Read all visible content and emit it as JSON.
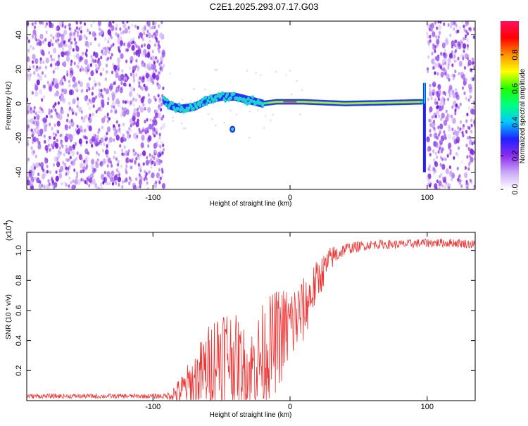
{
  "title": "C2E1.2025.293.07.17.G03",
  "chart_data": [
    {
      "type": "heatmap",
      "xlabel": "Height of straight line (km)",
      "ylabel": "Frequency (Hz)",
      "xlim": [
        -192,
        135
      ],
      "ylim": [
        -50,
        48
      ],
      "xticks": [
        -100,
        0,
        100
      ],
      "yticks": [
        -40,
        -20,
        0,
        20,
        40
      ],
      "colorbar": {
        "label": "Normalized spectral amplitude",
        "range": [
          0,
          1
        ],
        "ticks": [
          "0.0",
          "0.2",
          "0.4",
          "0.6",
          "0.8"
        ],
        "colors": [
          "#ffffff",
          "#c9a9f7",
          "#8c2cf0",
          "#2020ff",
          "#00c8ff",
          "#00ff80",
          "#20ff00",
          "#ffff00",
          "#ff9000",
          "#ff0000",
          "#ff1060"
        ]
      },
      "noise_regions": [
        [
          -192,
          -92
        ],
        [
          100,
          135
        ]
      ],
      "ridge": [
        {
          "x": -92,
          "y": 2
        },
        {
          "x": -88,
          "y": -1
        },
        {
          "x": -80,
          "y": -3
        },
        {
          "x": -70,
          "y": -2
        },
        {
          "x": -60,
          "y": 2
        },
        {
          "x": -50,
          "y": 4
        },
        {
          "x": -40,
          "y": 4
        },
        {
          "x": -30,
          "y": 2
        },
        {
          "x": -20,
          "y": 0
        },
        {
          "x": -10,
          "y": 1
        },
        {
          "x": 0,
          "y": 1
        },
        {
          "x": 10,
          "y": 1
        },
        {
          "x": 40,
          "y": 0
        },
        {
          "x": 70,
          "y": 0.5
        },
        {
          "x": 95,
          "y": 1
        }
      ],
      "blob": {
        "x": -42,
        "y": -15
      },
      "spike": {
        "x": 98,
        "y_from": -40,
        "y_to": 12
      }
    },
    {
      "type": "line",
      "xlabel": "Height of straight line (km)",
      "ylabel": "SNR (10 * v/v)",
      "multiplier": "(x10",
      "multiplier_exp": "4",
      "multiplier_close": ")",
      "xlim": [
        -192,
        135
      ],
      "ylim": [
        0,
        1.12
      ],
      "xticks": [
        -100,
        0,
        100
      ],
      "yticks": [
        "0.2",
        "0.4",
        "0.6",
        "0.8",
        "1.0"
      ],
      "series": [
        {
          "name": "SNR",
          "color": "#ee3333",
          "envelope_x": [
            -192,
            -100,
            -90,
            -80,
            -70,
            -60,
            -50,
            -40,
            -30,
            -20,
            -10,
            0,
            10,
            20,
            30,
            40,
            60,
            80,
            100,
            120,
            135
          ],
          "envelope_mean": [
            0.03,
            0.03,
            0.03,
            0.06,
            0.12,
            0.22,
            0.34,
            0.28,
            0.2,
            0.3,
            0.4,
            0.5,
            0.6,
            0.8,
            0.95,
            1.01,
            1.04,
            1.04,
            1.05,
            1.05,
            1.04
          ],
          "envelope_spread": [
            0.015,
            0.015,
            0.02,
            0.1,
            0.2,
            0.28,
            0.35,
            0.3,
            0.25,
            0.35,
            0.35,
            0.28,
            0.22,
            0.14,
            0.08,
            0.04,
            0.03,
            0.03,
            0.03,
            0.03,
            0.03
          ]
        }
      ]
    }
  ]
}
